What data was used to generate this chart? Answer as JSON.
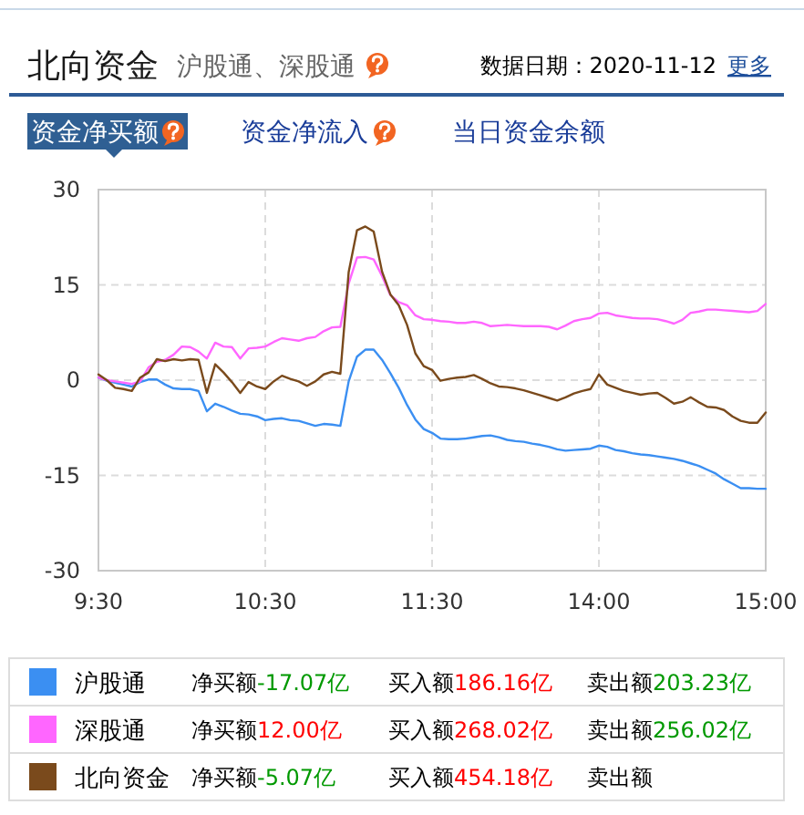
{
  "chart_data": {
    "type": "line",
    "title": "北向资金",
    "subtitle": "沪股通、深股通",
    "annotations": [
      "数据日期：2020-11-12",
      "更多",
      "资金净买额",
      "资金净流入",
      "当日资金余额",
      "净买额-17.07亿",
      "买入额186.16亿",
      "卖出额203.23亿",
      "净买额12.00亿",
      "买入额268.02亿",
      "卖出额256.02亿",
      "净买额-5.07亿",
      "买入额454.18亿",
      "卖出额"
    ],
    "categories": [
      "9:30",
      null,
      null,
      null,
      null,
      null,
      null,
      null,
      null,
      null,
      null,
      null,
      null,
      null,
      null,
      null,
      null,
      null,
      null,
      null,
      "10:30",
      null,
      null,
      null,
      null,
      null,
      null,
      null,
      null,
      null,
      null,
      null,
      null,
      null,
      null,
      null,
      null,
      null,
      null,
      null,
      "11:30",
      null,
      null,
      null,
      null,
      null,
      null,
      null,
      null,
      null,
      null,
      null,
      null,
      null,
      null,
      null,
      null,
      null,
      null,
      null,
      "14:00",
      null,
      null,
      null,
      null,
      null,
      null,
      null,
      null,
      null,
      null,
      null,
      null,
      null,
      null,
      null,
      null,
      null,
      null,
      null,
      "15:00"
    ],
    "ylim": [
      -30,
      30
    ],
    "yticks": [
      -30,
      -15,
      0,
      15,
      30
    ],
    "grid": true,
    "legend": "bottom",
    "series": [
      {
        "name": "沪股通",
        "color": "#3b8ff2",
        "values": [
          0.4,
          -0.1,
          -0.4,
          -0.7,
          -1.0,
          -0.3,
          0.1,
          0.1,
          -0.7,
          -1.3,
          -1.4,
          -1.4,
          -1.7,
          -4.9,
          -3.7,
          -4.2,
          -4.8,
          -5.3,
          -5.4,
          -5.7,
          -6.3,
          -6.1,
          -6.0,
          -6.3,
          -6.4,
          -6.8,
          -7.2,
          -6.9,
          -7.0,
          -7.2,
          -0.2,
          3.7,
          4.8,
          4.8,
          3.2,
          1.1,
          -1.2,
          -3.9,
          -6.2,
          -7.7,
          -8.3,
          -9.2,
          -9.3,
          -9.3,
          -9.2,
          -9.0,
          -8.8,
          -8.7,
          -9.0,
          -9.4,
          -9.6,
          -9.7,
          -10.0,
          -10.2,
          -10.5,
          -10.9,
          -11.1,
          -11.0,
          -10.9,
          -10.8,
          -10.3,
          -10.5,
          -11.0,
          -11.2,
          -11.5,
          -11.7,
          -11.8,
          -12.0,
          -12.2,
          -12.4,
          -12.7,
          -13.1,
          -13.5,
          -14.1,
          -14.7,
          -15.6,
          -16.3,
          -17.0,
          -17.0,
          -17.1,
          -17.1
        ]
      },
      {
        "name": "深股通",
        "color": "#ff66ff",
        "values": [
          0.4,
          0.0,
          -0.2,
          -0.4,
          -0.6,
          -0.2,
          2.0,
          2.9,
          3.2,
          4.0,
          5.3,
          5.2,
          4.5,
          3.4,
          5.9,
          5.3,
          5.2,
          3.4,
          5.0,
          5.1,
          5.3,
          6.0,
          6.6,
          6.4,
          6.2,
          6.6,
          6.8,
          7.7,
          8.3,
          8.4,
          15.2,
          19.3,
          19.4,
          19.0,
          16.4,
          13.4,
          12.3,
          11.8,
          10.2,
          9.6,
          9.5,
          9.3,
          9.2,
          9.0,
          9.0,
          9.2,
          9.0,
          8.5,
          8.6,
          8.7,
          8.6,
          8.5,
          8.5,
          8.5,
          8.4,
          8.0,
          8.6,
          9.3,
          9.6,
          9.8,
          10.5,
          10.6,
          10.2,
          10.0,
          9.8,
          9.7,
          9.7,
          9.6,
          9.3,
          8.9,
          9.5,
          10.6,
          10.8,
          11.1,
          11.1,
          11.0,
          10.9,
          10.8,
          10.7,
          10.9,
          12.0
        ]
      },
      {
        "name": "北向资金",
        "color": "#7a4a1c",
        "values": [
          0.9,
          0.0,
          -1.2,
          -1.4,
          -1.7,
          0.4,
          1.2,
          3.3,
          3.0,
          3.3,
          3.1,
          3.3,
          3.2,
          -2.0,
          2.5,
          1.2,
          -0.3,
          -2.0,
          -0.3,
          -1.0,
          -1.4,
          -0.2,
          0.7,
          0.2,
          -0.2,
          -0.9,
          -0.2,
          0.9,
          1.3,
          1.0,
          17.0,
          23.6,
          24.2,
          23.4,
          17.1,
          13.5,
          11.8,
          8.7,
          4.2,
          2.2,
          1.6,
          -0.1,
          0.2,
          0.4,
          0.5,
          0.8,
          0.2,
          -0.5,
          -1.0,
          -1.1,
          -1.3,
          -1.6,
          -2.0,
          -2.4,
          -2.8,
          -3.2,
          -2.7,
          -2.1,
          -1.7,
          -1.4,
          0.9,
          -0.7,
          -1.2,
          -1.7,
          -2.0,
          -2.3,
          -2.1,
          -2.0,
          -2.8,
          -3.7,
          -3.4,
          -2.7,
          -3.5,
          -4.2,
          -4.3,
          -4.7,
          -5.7,
          -6.4,
          -6.7,
          -6.7,
          -5.1
        ]
      }
    ]
  }
}
